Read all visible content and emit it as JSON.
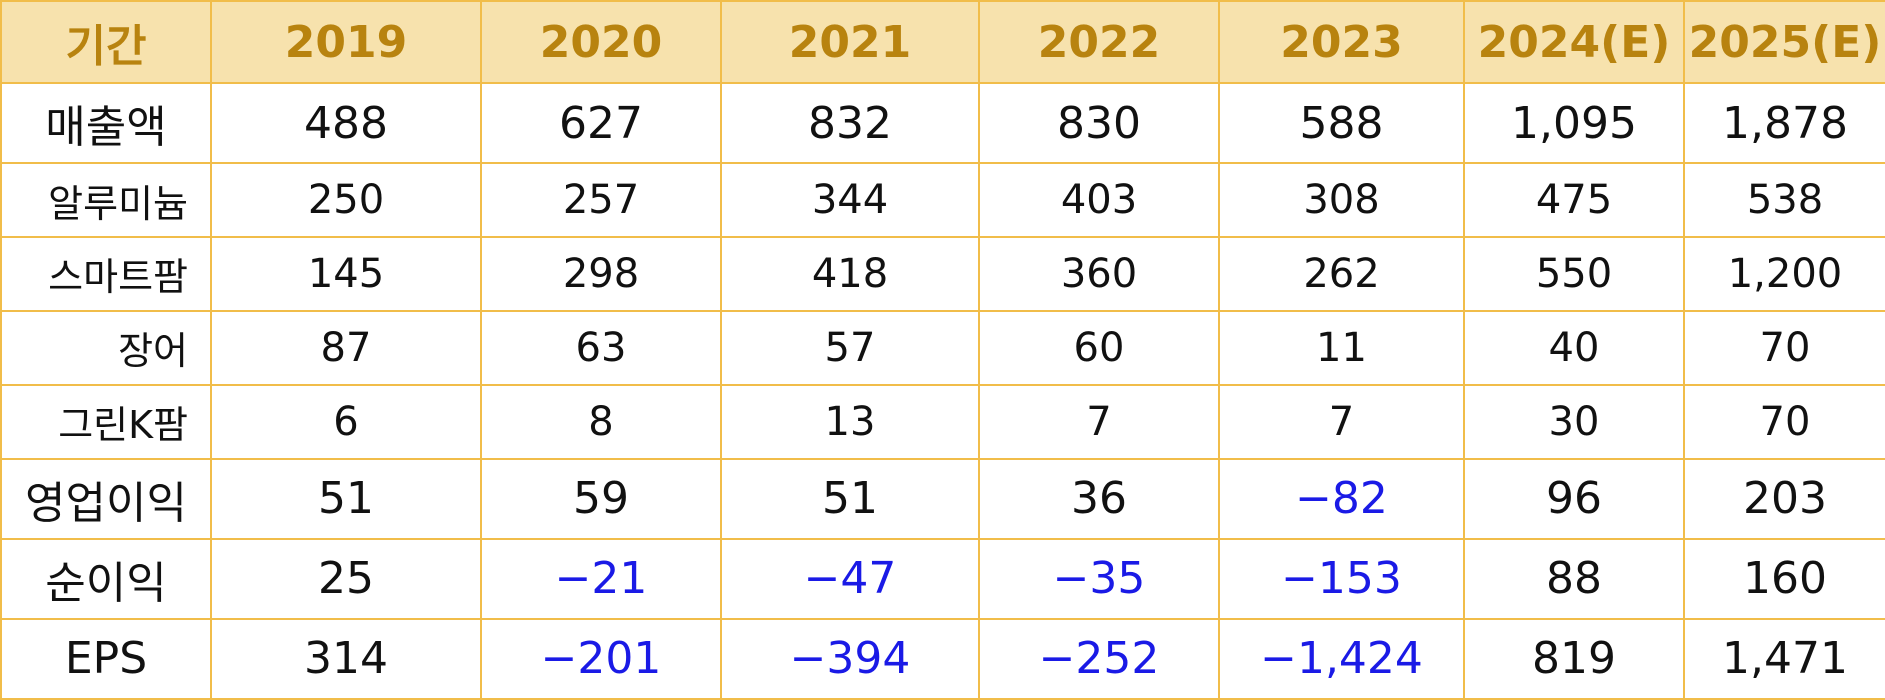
{
  "header": [
    "기간",
    "2019",
    "2020",
    "2021",
    "2022",
    "2023",
    "2024(E)",
    "2025(E)"
  ],
  "rows": [
    {
      "label": "매출액",
      "kind": "main",
      "values": [
        "488",
        "627",
        "832",
        "830",
        "588",
        "1,095",
        "1,878"
      ]
    },
    {
      "label": "알루미늄",
      "kind": "sub",
      "values": [
        "250",
        "257",
        "344",
        "403",
        "308",
        "475",
        "538"
      ]
    },
    {
      "label": "스마트팜",
      "kind": "sub",
      "values": [
        "145",
        "298",
        "418",
        "360",
        "262",
        "550",
        "1,200"
      ]
    },
    {
      "label": "장어",
      "kind": "sub",
      "values": [
        "87",
        "63",
        "57",
        "60",
        "11",
        "40",
        "70"
      ]
    },
    {
      "label": "그린K팜",
      "kind": "sub",
      "values": [
        "6",
        "8",
        "13",
        "7",
        "7",
        "30",
        "70"
      ]
    },
    {
      "label": "영업이익",
      "kind": "main",
      "values": [
        "51",
        "59",
        "51",
        "36",
        "−82",
        "96",
        "203"
      ]
    },
    {
      "label": "순이익",
      "kind": "main",
      "values": [
        "25",
        "−21",
        "−47",
        "−35",
        "−153",
        "88",
        "160"
      ]
    },
    {
      "label": "EPS",
      "kind": "main",
      "values": [
        "314",
        "−201",
        "−394",
        "−252",
        "−1,424",
        "819",
        "1,471"
      ]
    }
  ],
  "colors": {
    "header_bg": "#f7e2ad",
    "header_text": "#b8830f",
    "border": "#f1bd4a",
    "negative_text": "#1a1ae6",
    "body_text": "#111111"
  }
}
